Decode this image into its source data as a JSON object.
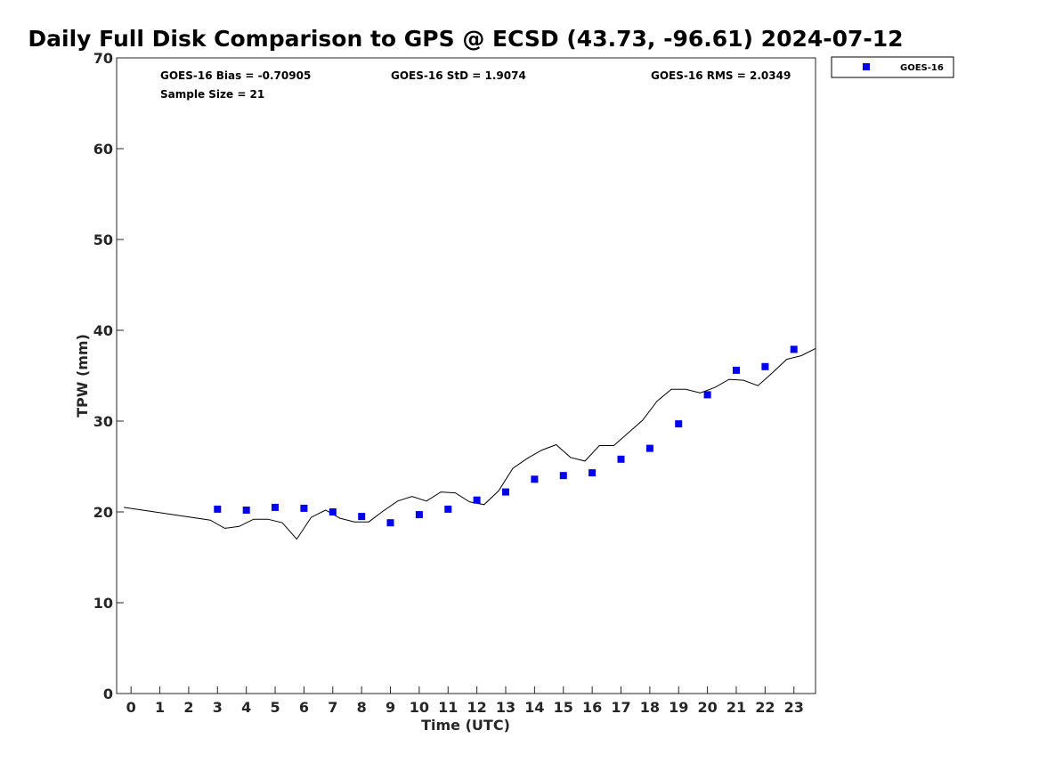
{
  "chart_data": {
    "type": "scatter",
    "title": "Daily Full Disk Comparison to GPS @ ECSD (43.73, -96.61) 2024-07-12",
    "xlabel": "Time (UTC)",
    "ylabel": "TPW (mm)",
    "xlim": [
      -0.5,
      23.75
    ],
    "ylim": [
      0,
      70
    ],
    "x_ticks": [
      0,
      1,
      2,
      3,
      4,
      5,
      6,
      7,
      8,
      9,
      10,
      11,
      12,
      13,
      14,
      15,
      16,
      17,
      18,
      19,
      20,
      21,
      22,
      23
    ],
    "y_ticks": [
      0,
      10,
      20,
      30,
      40,
      50,
      60,
      70
    ],
    "grid": false,
    "legend_position": "outside-top-right",
    "stats": {
      "bias": "GOES-16 Bias = -0.70905",
      "std": "GOES-16 StD = 1.9074",
      "rms": "GOES-16 RMS = 2.0349",
      "sample_size": "Sample Size = 21"
    },
    "series": [
      {
        "name": "GOES-16",
        "kind": "scatter",
        "color": "#0000ee",
        "marker": "square",
        "x": [
          3,
          4,
          5,
          6,
          7,
          8,
          9,
          10,
          11,
          12,
          13,
          14,
          15,
          16,
          17,
          18,
          19,
          20,
          21,
          22,
          23
        ],
        "y": [
          20.3,
          20.2,
          20.5,
          20.4,
          20.0,
          19.5,
          18.8,
          19.7,
          20.3,
          21.3,
          22.2,
          23.6,
          24.0,
          24.3,
          25.8,
          27.0,
          29.7,
          32.9,
          35.6,
          36.0,
          37.9
        ]
      },
      {
        "kind": "line",
        "color": "#000000",
        "x": [
          -0.25,
          2.75,
          3.25,
          3.75,
          4.25,
          4.75,
          5.25,
          5.75,
          6.25,
          6.75,
          7.25,
          7.75,
          8.25,
          8.75,
          9.25,
          9.75,
          10.25,
          10.75,
          11.25,
          11.75,
          12.25,
          12.75,
          13.25,
          13.75,
          14.25,
          14.75,
          15.25,
          15.75,
          16.25,
          16.75,
          17.25,
          17.75,
          18.25,
          18.75,
          19.25,
          19.75,
          20.25,
          20.75,
          21.25,
          21.75,
          22.25,
          22.75,
          23.25,
          23.75
        ],
        "y": [
          20.5,
          19.1,
          18.2,
          18.4,
          19.2,
          19.2,
          18.8,
          17.0,
          19.4,
          20.2,
          19.3,
          18.9,
          18.9,
          20.1,
          21.2,
          21.7,
          21.2,
          22.2,
          22.1,
          21.1,
          20.8,
          22.3,
          24.8,
          25.9,
          26.8,
          27.4,
          26.0,
          25.6,
          27.3,
          27.3,
          28.7,
          30.1,
          32.2,
          33.5,
          33.5,
          33.1,
          33.7,
          34.6,
          34.5,
          33.9,
          35.3,
          36.8,
          37.2,
          38.0
        ]
      }
    ]
  }
}
